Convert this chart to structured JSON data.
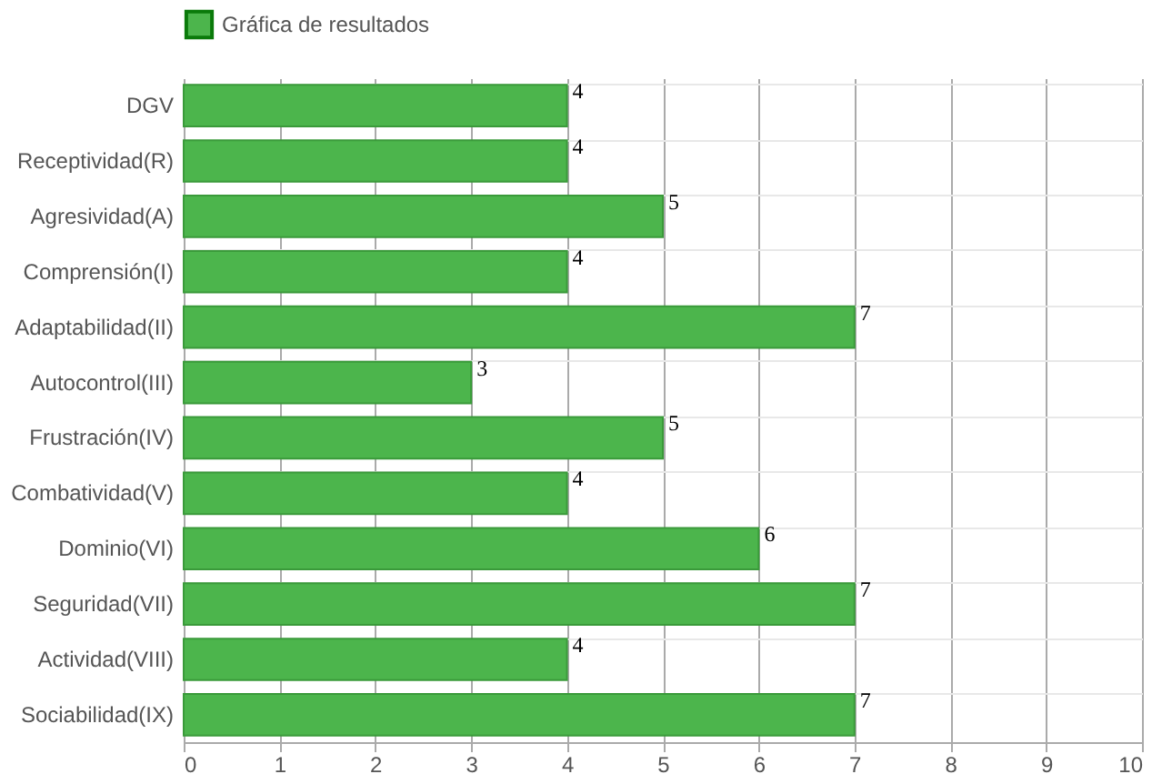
{
  "chart_data": {
    "type": "bar",
    "orientation": "horizontal",
    "categories": [
      "DGV",
      "Receptividad(R)",
      "Agresividad(A)",
      "Comprensión(I)",
      "Adaptabilidad(II)",
      "Autocontrol(III)",
      "Frustración(IV)",
      "Combatividad(V)",
      "Dominio(VI)",
      "Seguridad(VII)",
      "Actividad(VIII)",
      "Sociabilidad(IX)"
    ],
    "series": [
      {
        "name": "Gráfica de resultados",
        "color": "#4cb54c",
        "values": [
          4,
          4,
          5,
          4,
          7,
          3,
          5,
          4,
          6,
          7,
          4,
          7
        ]
      }
    ],
    "xlim": [
      0,
      10
    ],
    "xticks": [
      0,
      1,
      2,
      3,
      4,
      5,
      6,
      7,
      8,
      9,
      10
    ],
    "grid": true,
    "legend": "top",
    "data_labels": true
  }
}
